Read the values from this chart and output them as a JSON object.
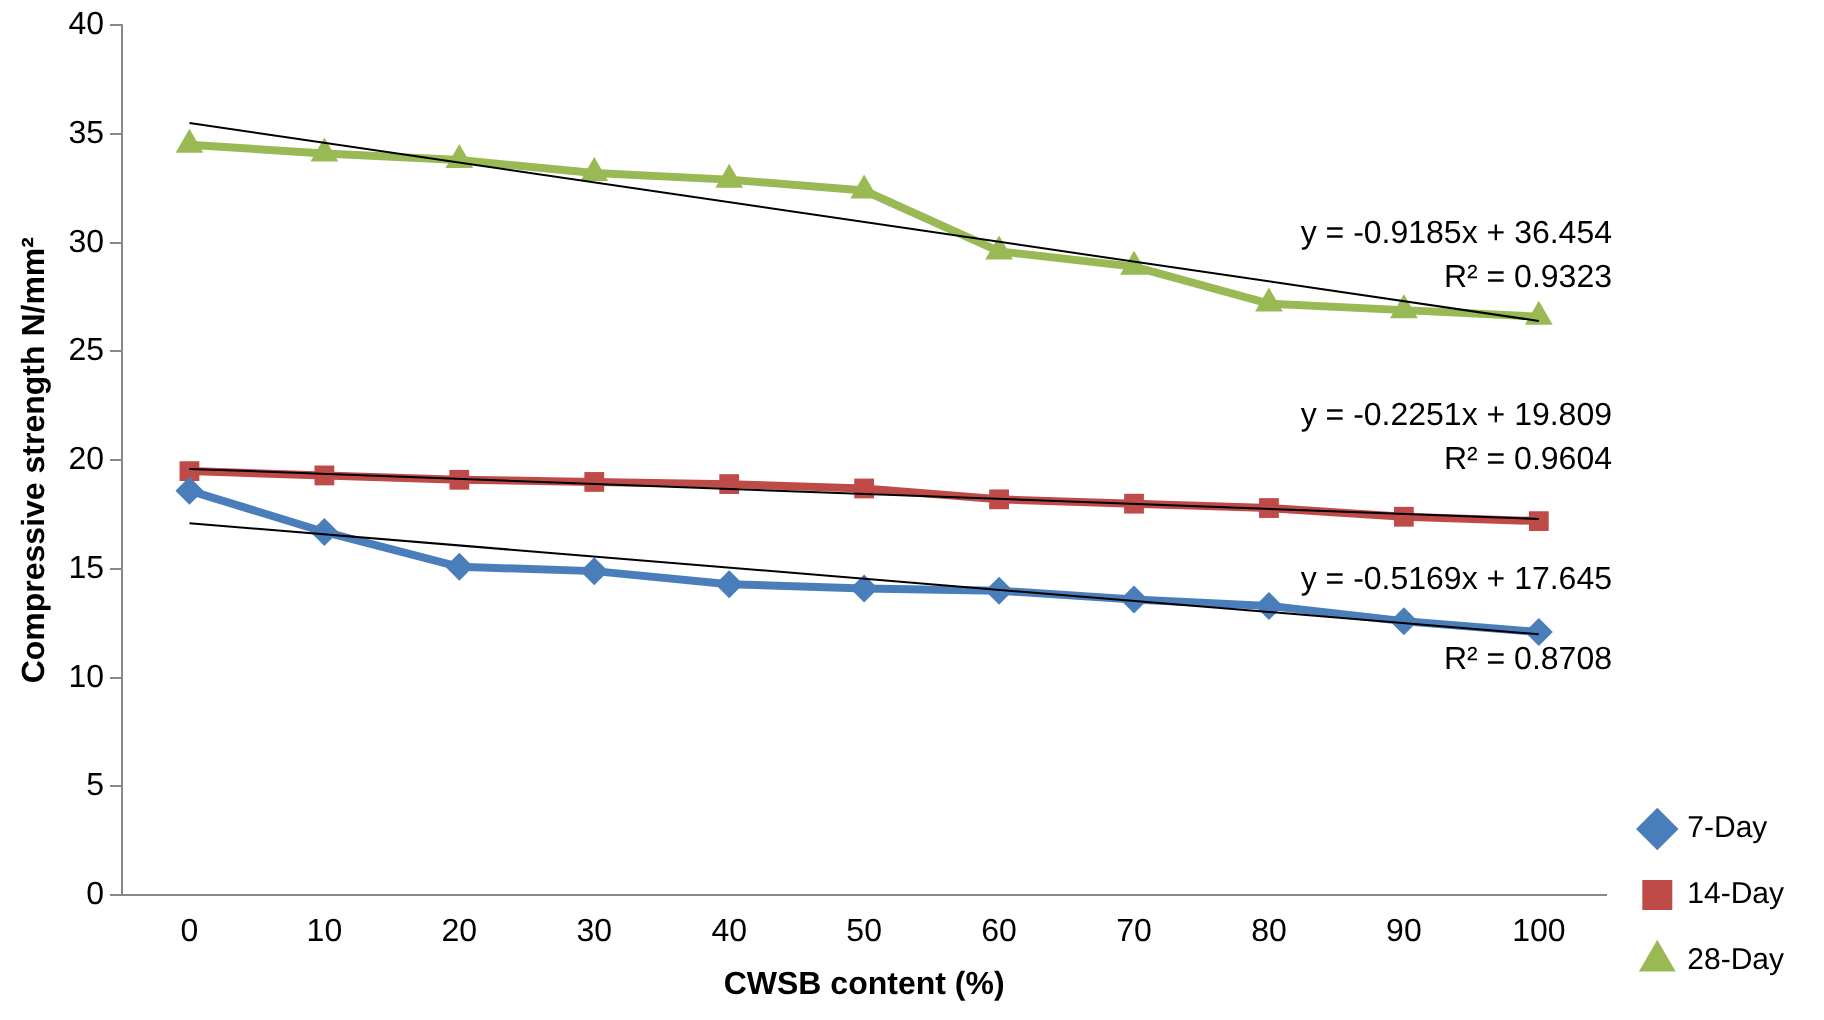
{
  "chart_data": {
    "type": "line",
    "xlabel": "CWSB content (%)",
    "ylabel": "Compressive strength N/mm²",
    "categories": [
      "0",
      "10",
      "20",
      "30",
      "40",
      "50",
      "60",
      "70",
      "80",
      "90",
      "100"
    ],
    "series": [
      {
        "name": "7-Day",
        "color": "#4a7ebb",
        "marker": "diamond",
        "values": [
          18.6,
          16.7,
          15.1,
          14.9,
          14.3,
          14.1,
          14.0,
          13.6,
          13.3,
          12.6,
          12.1
        ]
      },
      {
        "name": "14-Day",
        "color": "#be4b48",
        "marker": "square",
        "values": [
          19.5,
          19.3,
          19.1,
          19.0,
          18.9,
          18.7,
          18.2,
          18.0,
          17.8,
          17.4,
          17.2
        ]
      },
      {
        "name": "28-Day",
        "color": "#98b954",
        "marker": "triangle",
        "values": [
          34.5,
          34.1,
          33.8,
          33.2,
          32.9,
          32.4,
          29.6,
          28.9,
          27.2,
          26.9,
          26.6
        ]
      },
      {
        "color": "#000000",
        "marker": "none",
        "x": [
          "0",
          "100"
        ],
        "values": [
          17.1,
          12.0
        ]
      },
      {
        "color": "#000000",
        "marker": "none",
        "x": [
          "0",
          "100"
        ],
        "values": [
          19.6,
          17.3
        ]
      },
      {
        "color": "#000000",
        "marker": "none",
        "x": [
          "0",
          "100"
        ],
        "values": [
          35.5,
          26.4
        ]
      }
    ],
    "ylim": [
      0,
      40
    ],
    "yticks": [
      0,
      5,
      10,
      15,
      20,
      25,
      30,
      35,
      40
    ],
    "grid": false,
    "legend": "right",
    "line_style": "solid",
    "annotations": [
      "y = -0.9185x + 36.454",
      "R² = 0.9323",
      "y = -0.2251x + 19.809",
      "R² = 0.9604",
      "y = -0.5169x + 17.645",
      "R² = 0.8708"
    ]
  }
}
